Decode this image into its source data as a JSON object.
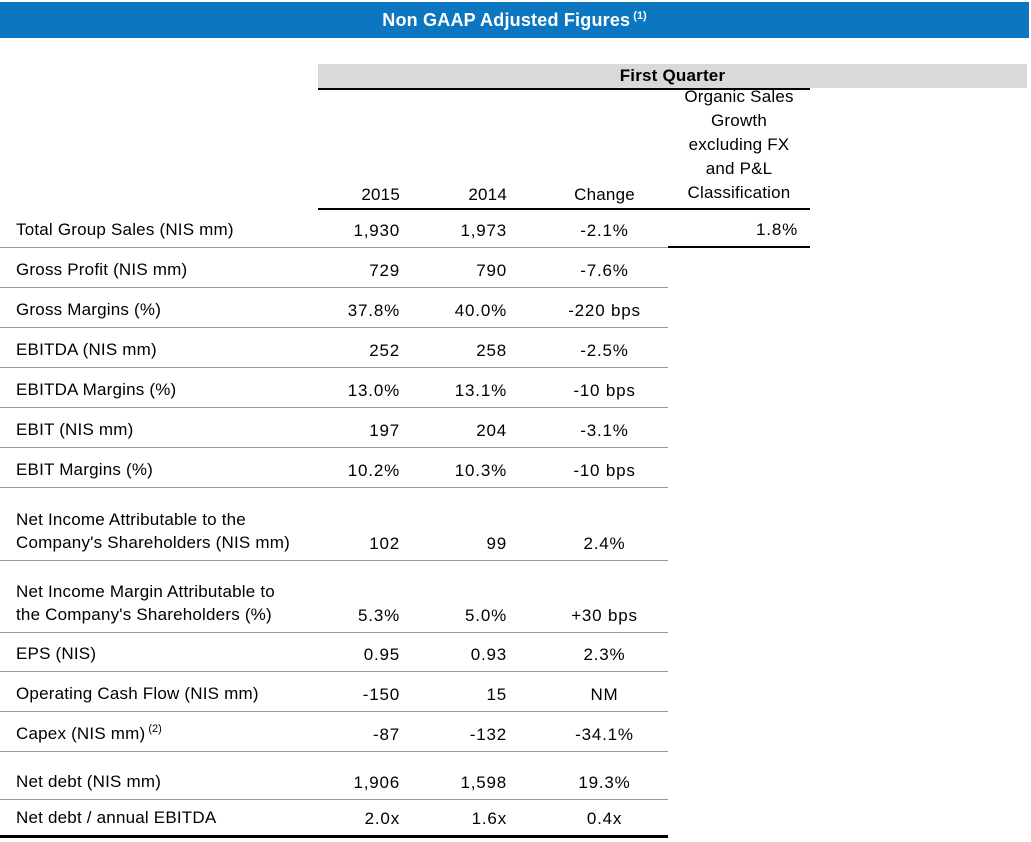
{
  "title": {
    "text": "Non GAAP Adjusted Figures",
    "superscript": "(1)"
  },
  "header": {
    "group_label": "First Quarter",
    "col_2015": "2015",
    "col_2014": "2014",
    "col_change": "Change",
    "col_organic": "Organic Sales\nGrowth\nexcluding FX\nand P&L\nClassification"
  },
  "colors": {
    "title_bar_blue": "#0d76c0",
    "band_gray": "#d9d9d9",
    "row_line_gray": "#999999",
    "text_black": "#000000"
  },
  "rows": [
    {
      "label": "Total Group Sales (NIS mm)",
      "y2015": "1,930",
      "y2014": "1,973",
      "change": "-2.1%",
      "organic": "1.8%"
    },
    {
      "label": "Gross Profit (NIS mm)",
      "y2015": "729",
      "y2014": "790",
      "change": "-7.6%"
    },
    {
      "label": "Gross Margins (%)",
      "y2015": "37.8%",
      "y2014": "40.0%",
      "change": "-220 bps"
    },
    {
      "label": "EBITDA (NIS mm)",
      "y2015": "252",
      "y2014": "258",
      "change": "-2.5%"
    },
    {
      "label": "EBITDA Margins (%)",
      "y2015": "13.0%",
      "y2014": "13.1%",
      "change": "-10 bps"
    },
    {
      "label": "EBIT (NIS mm)",
      "y2015": "197",
      "y2014": "204",
      "change": "-3.1%"
    },
    {
      "label": "EBIT Margins (%)",
      "y2015": "10.2%",
      "y2014": "10.3%",
      "change": "-10 bps"
    },
    {
      "label": "Net Income Attributable to the\nCompany's Shareholders (NIS mm)",
      "y2015": "102",
      "y2014": "99",
      "change": "2.4%"
    },
    {
      "label": "Net Income Margin Attributable to\nthe Company's Shareholders (%)",
      "y2015": "5.3%",
      "y2014": "5.0%",
      "change": "+30 bps"
    },
    {
      "label": "EPS (NIS)",
      "y2015": "0.95",
      "y2014": "0.93",
      "change": "2.3%"
    },
    {
      "label": "Operating Cash Flow (NIS mm)",
      "y2015": "-150",
      "y2014": "15",
      "change": "NM"
    },
    {
      "label": "Capex (NIS mm)",
      "label_sup": "(2)",
      "y2015": "-87",
      "y2014": "-132",
      "change": "-34.1%"
    },
    {
      "label": "Net debt (NIS mm)",
      "y2015": "1,906",
      "y2014": "1,598",
      "change": "19.3%"
    },
    {
      "label": "Net debt / annual EBITDA",
      "y2015": "2.0x",
      "y2014": "1.6x",
      "change": "0.4x"
    }
  ]
}
